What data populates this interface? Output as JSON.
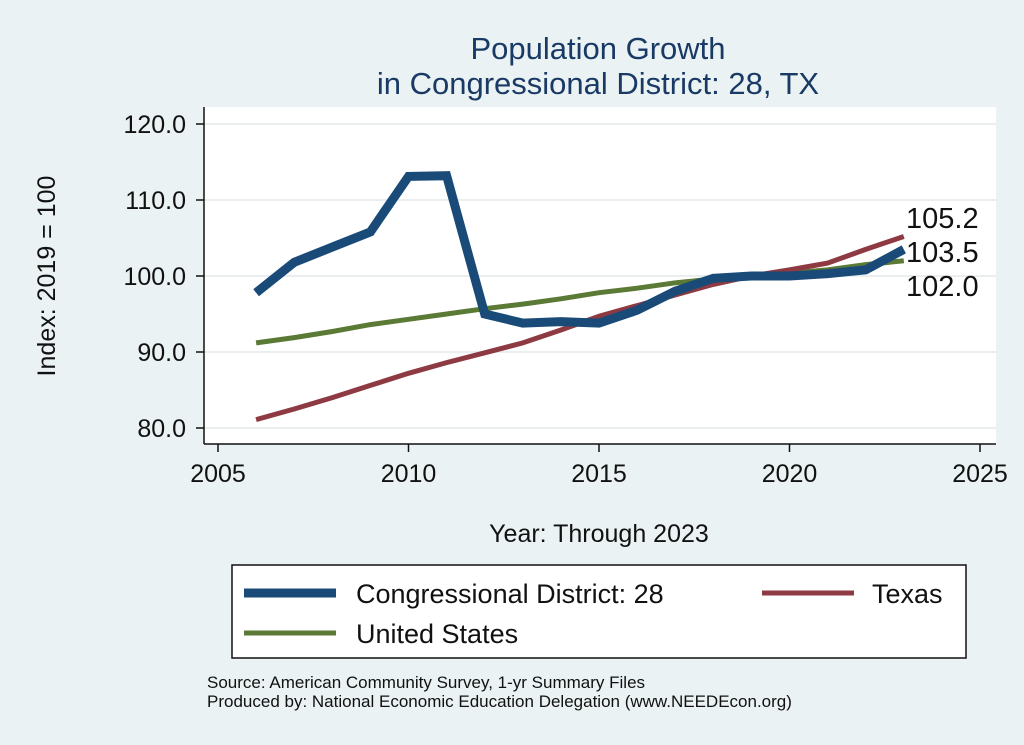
{
  "chart_data": {
    "type": "line",
    "title": "Population Growth",
    "subtitle": "in Congressional District: 28, TX",
    "xlabel": "Year: Through 2023",
    "ylabel": "Index: 2019 = 100",
    "xlim": [
      2005,
      2025
    ],
    "ylim": [
      80,
      120
    ],
    "xticks": [
      2005,
      2010,
      2015,
      2020,
      2025
    ],
    "yticks": [
      80,
      90,
      100,
      110,
      120
    ],
    "ytick_labels": [
      "80.0",
      "90.0",
      "100.0",
      "110.0",
      "120.0"
    ],
    "grid": "horizontal",
    "legend": "bottom",
    "x": [
      2006,
      2007,
      2008,
      2009,
      2010,
      2011,
      2012,
      2013,
      2014,
      2015,
      2016,
      2017,
      2018,
      2019,
      2020,
      2021,
      2022,
      2023
    ],
    "series": [
      {
        "name": "Congressional District: 28",
        "color": "#1a4a78",
        "values": [
          97.8,
          101.8,
          103.8,
          105.8,
          113.1,
          113.2,
          95.0,
          93.8,
          94.0,
          93.8,
          95.5,
          98.0,
          99.7,
          100.0,
          100.0,
          100.3,
          100.8,
          103.5
        ],
        "end_label": "103.5"
      },
      {
        "name": "Texas",
        "color": "#8e3a42",
        "values": [
          81.1,
          82.5,
          84.0,
          85.6,
          87.2,
          88.6,
          89.9,
          91.2,
          92.9,
          94.7,
          96.1,
          97.5,
          98.9,
          100.0,
          100.8,
          101.7,
          103.5,
          105.2
        ],
        "end_label": "105.2"
      },
      {
        "name": "United States",
        "color": "#5b7a35",
        "values": [
          91.2,
          91.9,
          92.7,
          93.6,
          94.3,
          95.0,
          95.7,
          96.3,
          97.0,
          97.8,
          98.4,
          99.1,
          99.6,
          100.0,
          100.4,
          100.8,
          101.5,
          102.0
        ],
        "end_label": "102.0"
      }
    ]
  },
  "notes": {
    "source": "Source: American Community Survey, 1-yr Summary Files",
    "produced_by": "Produced by: National Economic Education Delegation (www.NEEDEcon.org)"
  }
}
